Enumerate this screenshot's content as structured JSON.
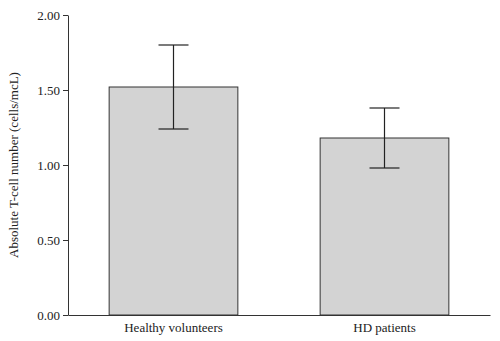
{
  "chart_data": {
    "type": "bar",
    "y_label": "Absolute T-cell number (cells/mcL)",
    "categories": [
      "Healthy volunteers",
      "HD patients"
    ],
    "values": [
      1.52,
      1.18
    ],
    "errors": [
      0.28,
      0.2
    ],
    "color": "#d3d3d3",
    "ylim": [
      0,
      2
    ],
    "yticks": [
      {
        "value": 0,
        "label": "0.00"
      },
      {
        "value": 0.5,
        "label": "0.50"
      },
      {
        "value": 1,
        "label": "1.00"
      },
      {
        "value": 1.5,
        "label": "1.50"
      },
      {
        "value": 2,
        "label": "2.00"
      }
    ],
    "grid": false
  }
}
